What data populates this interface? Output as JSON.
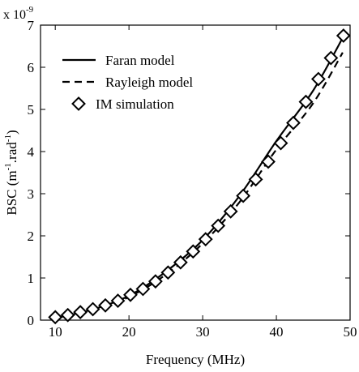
{
  "chart_data": {
    "type": "line",
    "title": "",
    "xlabel": "Frequency (MHz)",
    "ylabel_parts": [
      "BSC (m",
      "-1",
      ".rad",
      "-1",
      ")"
    ],
    "y_multiplier_base": "x 10",
    "y_multiplier_exp": "-9",
    "xlim": [
      8,
      50
    ],
    "ylim": [
      0,
      7
    ],
    "xticks": [
      10,
      20,
      30,
      40,
      50
    ],
    "yticks": [
      0,
      1,
      2,
      3,
      4,
      5,
      6,
      7
    ],
    "grid": false,
    "legend_position": "top-left",
    "series": [
      {
        "name": "Faran model",
        "style": "solid",
        "x": [
          10,
          15,
          20,
          25,
          30,
          35,
          40,
          45,
          49
        ],
        "y": [
          0.05,
          0.25,
          0.58,
          1.15,
          1.9,
          2.95,
          4.25,
          5.45,
          6.7
        ]
      },
      {
        "name": "Rayleigh model",
        "style": "dashed",
        "x": [
          10,
          15,
          20,
          25,
          30,
          35,
          40,
          45,
          49
        ],
        "y": [
          0.04,
          0.22,
          0.55,
          1.08,
          1.82,
          2.8,
          4.05,
          5.15,
          6.35
        ]
      },
      {
        "name": "IM simulation",
        "style": "diamond",
        "x": [
          10,
          11.7,
          13.4,
          15.1,
          16.8,
          18.5,
          20.2,
          21.9,
          23.6,
          25.3,
          27,
          28.7,
          30.4,
          32.1,
          33.8,
          35.5,
          37.2,
          38.9,
          40.6,
          42.3,
          44,
          45.7,
          47.4,
          49.1
        ],
        "y": [
          0.07,
          0.12,
          0.19,
          0.26,
          0.35,
          0.46,
          0.6,
          0.74,
          0.92,
          1.13,
          1.37,
          1.63,
          1.92,
          2.24,
          2.58,
          2.95,
          3.34,
          3.76,
          4.2,
          4.68,
          5.18,
          5.72,
          6.22,
          6.75
        ]
      }
    ]
  }
}
